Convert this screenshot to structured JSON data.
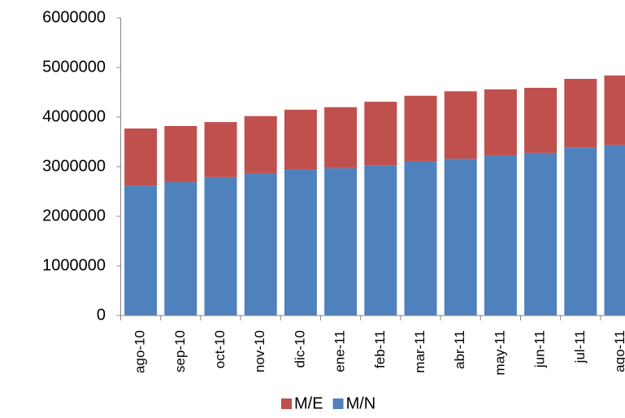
{
  "chart_data": {
    "type": "stacked_bar",
    "categories": [
      "ago-10",
      "sep-10",
      "oct-10",
      "nov-10",
      "dic-10",
      "ene-11",
      "feb-11",
      "mar-11",
      "abr-11",
      "may-11",
      "jun-11",
      "jul-11",
      "ago-11"
    ],
    "series": [
      {
        "name": "M/N",
        "color": "#4f81bd",
        "values": [
          2620000,
          2690000,
          2790000,
          2870000,
          2950000,
          2970000,
          3030000,
          3100000,
          3160000,
          3230000,
          3280000,
          3390000,
          3440000
        ]
      },
      {
        "name": "M/E",
        "color": "#c0504d",
        "values": [
          1150000,
          1130000,
          1110000,
          1150000,
          1200000,
          1230000,
          1280000,
          1330000,
          1360000,
          1330000,
          1310000,
          1380000,
          1400000
        ]
      }
    ],
    "ylim": [
      0,
      6000000
    ],
    "yticks": [
      0,
      1000000,
      2000000,
      3000000,
      4000000,
      5000000,
      6000000
    ],
    "legend": "bottom"
  }
}
